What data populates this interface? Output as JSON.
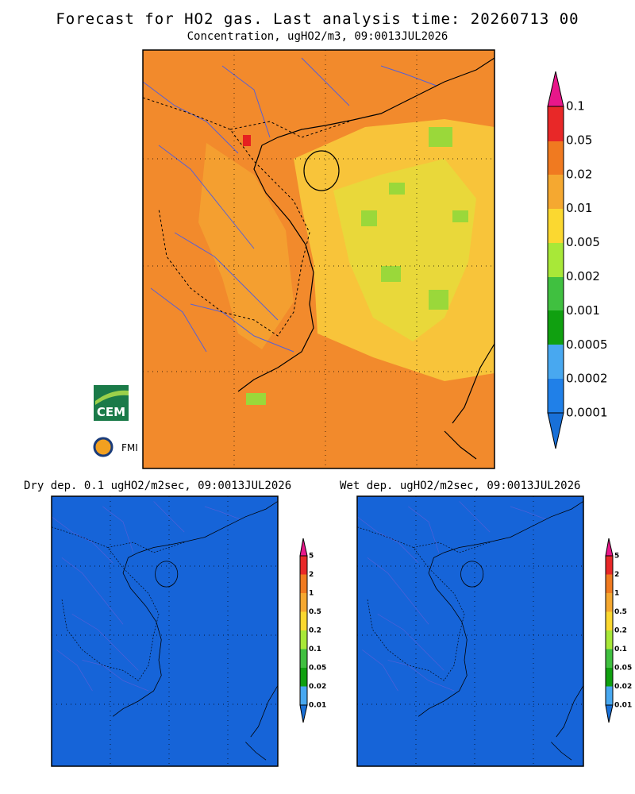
{
  "header": {
    "title": "Forecast for HO2 gas. Last analysis time: 20260713 00",
    "subtitle": "Concentration, ugHO2/m3, 09:0013JUL2026"
  },
  "main_colorbar": {
    "labels": [
      "0.1",
      "0.05",
      "0.02",
      "0.01",
      "0.005",
      "0.002",
      "0.001",
      "0.0005",
      "0.0002",
      "0.0001"
    ]
  },
  "logos": {
    "cem": "CEM",
    "fmi": "FMI"
  },
  "panels": [
    {
      "title": "Dry dep. 0.1 ugHO2/m2sec, 09:0013JUL2026"
    },
    {
      "title": "Wet dep. ugHO2/m2sec, 09:0013JUL2026"
    }
  ],
  "small_colorbar": {
    "labels": [
      "5",
      "2",
      "1",
      "0.5",
      "0.2",
      "0.1",
      "0.05",
      "0.02",
      "0.01"
    ]
  }
}
